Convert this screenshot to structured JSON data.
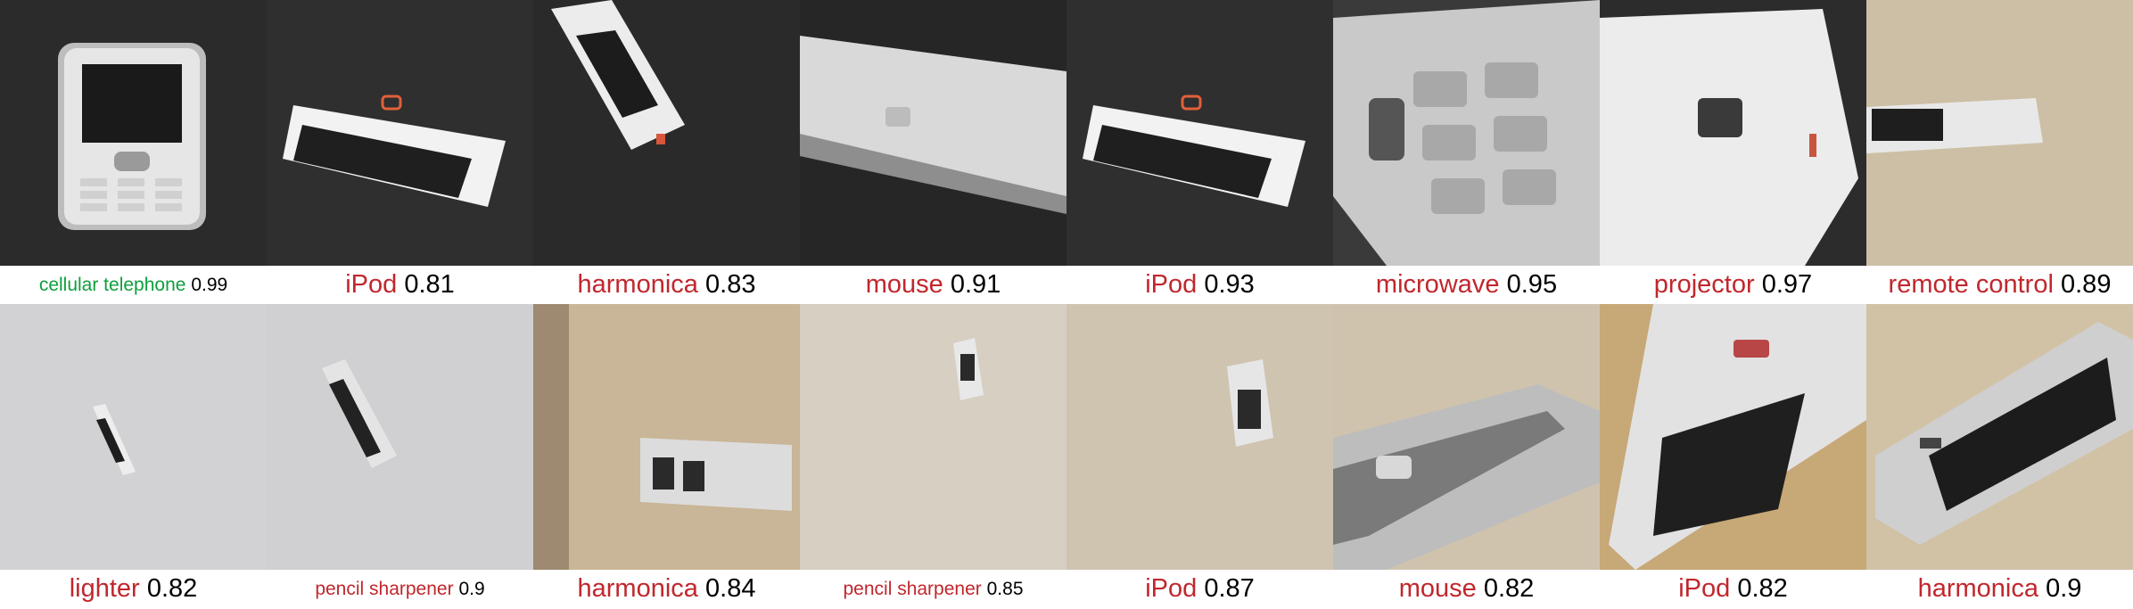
{
  "colors": {
    "wrong": "#c0272d",
    "correct": "#0e9f3d"
  },
  "rows": [
    [
      {
        "label": "cellular telephone",
        "score": "0.99",
        "correct": true,
        "size": "small"
      },
      {
        "label": "iPod",
        "score": "0.81",
        "correct": false,
        "size": "big"
      },
      {
        "label": "harmonica",
        "score": "0.83",
        "correct": false,
        "size": "big"
      },
      {
        "label": "mouse",
        "score": "0.91",
        "correct": false,
        "size": "big"
      },
      {
        "label": "iPod",
        "score": "0.93",
        "correct": false,
        "size": "big"
      },
      {
        "label": "microwave",
        "score": "0.95",
        "correct": false,
        "size": "big"
      },
      {
        "label": "projector",
        "score": "0.97",
        "correct": false,
        "size": "big"
      },
      {
        "label": "remote control",
        "score": "0.89",
        "correct": false,
        "size": "big"
      }
    ],
    [
      {
        "label": "lighter",
        "score": "0.82",
        "correct": false,
        "size": "big"
      },
      {
        "label": "pencil sharpener",
        "score": "0.9",
        "correct": false,
        "size": "small"
      },
      {
        "label": "harmonica",
        "score": "0.84",
        "correct": false,
        "size": "big"
      },
      {
        "label": "pencil sharpener",
        "score": "0.85",
        "correct": false,
        "size": "small"
      },
      {
        "label": "iPod",
        "score": "0.87",
        "correct": false,
        "size": "big"
      },
      {
        "label": "mouse",
        "score": "0.82",
        "correct": false,
        "size": "big"
      },
      {
        "label": "iPod",
        "score": "0.82",
        "correct": false,
        "size": "big"
      },
      {
        "label": "harmonica",
        "score": "0.9",
        "correct": false,
        "size": "big"
      }
    ]
  ]
}
